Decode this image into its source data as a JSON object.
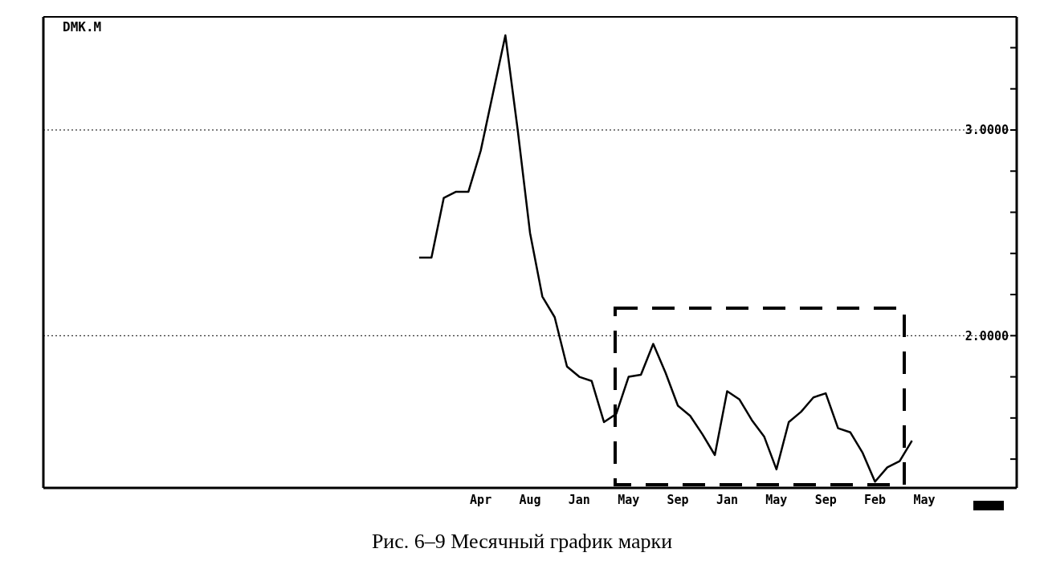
{
  "chart_data": {
    "type": "line",
    "title": "DMK.M",
    "annotations": [
      "Рис. 6–9 Месячный график марки"
    ],
    "categories": [
      null,
      null,
      null,
      null,
      null,
      null,
      null,
      null,
      null,
      null,
      null,
      null,
      null,
      null,
      null,
      null,
      null,
      null,
      null,
      null,
      null,
      null,
      null,
      null,
      null,
      null,
      null,
      null,
      null,
      null,
      null,
      null,
      null,
      null,
      null,
      "Apr",
      null,
      null,
      null,
      "Aug",
      null,
      null,
      null,
      "Jan",
      null,
      null,
      null,
      "May",
      null,
      null,
      null,
      "Sep",
      null,
      null,
      null,
      "Jan",
      null,
      null,
      null,
      "May",
      null,
      null,
      null,
      "Sep",
      null,
      null,
      null,
      "Feb",
      null,
      null,
      null,
      "May",
      null,
      null,
      null,
      null,
      null,
      null,
      null
    ],
    "series": [
      {
        "color": "#000000",
        "values": [
          null,
          null,
          null,
          null,
          null,
          null,
          null,
          null,
          null,
          null,
          null,
          null,
          null,
          null,
          null,
          null,
          null,
          null,
          null,
          null,
          null,
          null,
          null,
          null,
          null,
          null,
          null,
          null,
          null,
          null,
          2.38,
          2.38,
          2.67,
          2.7,
          2.7,
          2.9,
          3.18,
          3.46,
          3.0,
          2.5,
          2.19,
          2.09,
          1.85,
          1.8,
          1.78,
          1.58,
          1.62,
          1.8,
          1.81,
          1.96,
          1.82,
          1.66,
          1.61,
          1.52,
          1.42,
          1.73,
          1.69,
          1.59,
          1.51,
          1.35,
          1.58,
          1.63,
          1.7,
          1.72,
          1.55,
          1.53,
          1.43,
          1.29,
          1.36,
          1.39,
          1.49,
          null,
          null,
          null,
          null,
          null,
          null,
          null,
          null
        ]
      }
    ],
    "ylim": [
      1.26,
      3.55
    ],
    "yticks": [
      {
        "value": 1.4,
        "label": null
      },
      {
        "value": 1.6,
        "label": null
      },
      {
        "value": 1.8,
        "label": null
      },
      {
        "value": 2,
        "label": "2.0000"
      },
      {
        "value": 2.2,
        "label": null
      },
      {
        "value": 2.4,
        "label": null
      },
      {
        "value": 2.6,
        "label": null
      },
      {
        "value": 2.8,
        "label": null
      },
      {
        "value": 3,
        "label": "3.0000"
      },
      {
        "value": 3.2,
        "label": null
      },
      {
        "value": 3.4,
        "label": null
      }
    ],
    "ref_lines": [
      {
        "axis": "y",
        "value": 2,
        "line_style": "dotted",
        "color": "#000000"
      },
      {
        "axis": "y",
        "value": 3,
        "line_style": "dotted",
        "color": "#000000"
      }
    ],
    "grid": false,
    "legend": false,
    "marker": "none",
    "line_style": "solid"
  }
}
